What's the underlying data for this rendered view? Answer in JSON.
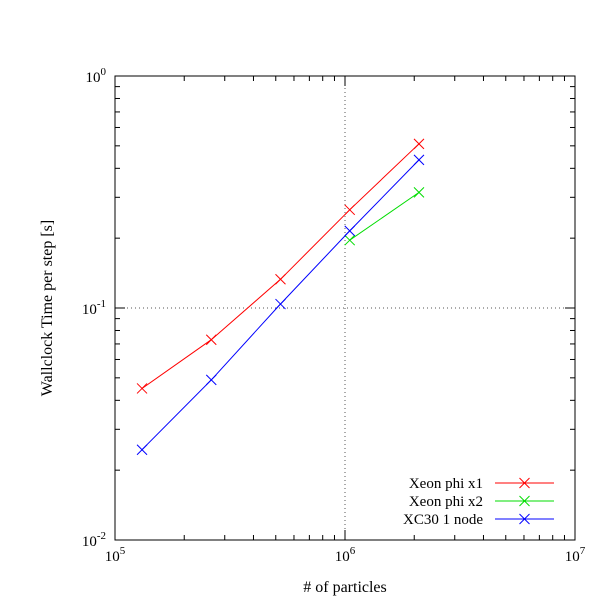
{
  "chart_data": {
    "type": "line",
    "title": "",
    "xlabel": "# of particles",
    "ylabel": "Wallclock Time per step [s]",
    "xscale": "log",
    "yscale": "log",
    "xlim": [
      100000,
      10000000
    ],
    "ylim": [
      0.01,
      1
    ],
    "grid": "dotted lines at 10^6 (x) and 10^-1 (y)",
    "legend_position": "bottom-right",
    "x_ticks": [
      {
        "base": "10",
        "exp": "5"
      },
      {
        "base": "10",
        "exp": "6"
      },
      {
        "base": "10",
        "exp": "7"
      }
    ],
    "y_ticks": [
      {
        "base": "10",
        "exp": "-2"
      },
      {
        "base": "10",
        "exp": "-1"
      },
      {
        "base": "10",
        "exp": "0"
      }
    ],
    "series": [
      {
        "name": "Xeon phi x1",
        "color": "#ff0000",
        "marker": "x",
        "x": [
          131072,
          262144,
          524288,
          1048576,
          2097152
        ],
        "y": [
          0.045,
          0.073,
          0.133,
          0.265,
          0.51
        ]
      },
      {
        "name": "Xeon phi x2",
        "color": "#00dd00",
        "marker": "x",
        "x": [
          1048576,
          2097152
        ],
        "y": [
          0.196,
          0.315
        ]
      },
      {
        "name": "XC30 1 node",
        "color": "#0000ff",
        "marker": "x",
        "x": [
          131072,
          262144,
          524288,
          1048576,
          2097152
        ],
        "y": [
          0.0245,
          0.049,
          0.104,
          0.215,
          0.435
        ]
      }
    ]
  }
}
